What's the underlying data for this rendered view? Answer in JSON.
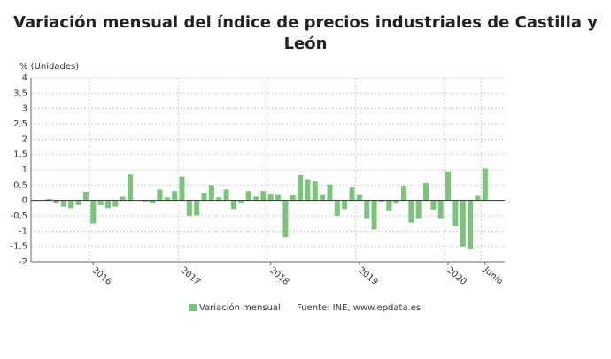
{
  "chart_data": {
    "type": "bar",
    "title_lines": [
      "Variación mensual del índice de precios industriales de Castilla y",
      "León"
    ],
    "y_axis_label": "% (Unidades)",
    "categories": [
      null,
      null,
      null,
      null,
      null,
      null,
      "2016",
      null,
      null,
      null,
      null,
      null,
      null,
      null,
      null,
      null,
      null,
      null,
      "2017",
      null,
      null,
      null,
      null,
      null,
      null,
      null,
      null,
      null,
      null,
      null,
      "2018",
      null,
      null,
      null,
      null,
      null,
      null,
      null,
      null,
      null,
      null,
      null,
      "2019",
      null,
      null,
      null,
      null,
      null,
      null,
      null,
      null,
      null,
      null,
      null,
      "2020",
      null,
      null,
      null,
      null,
      "Junio"
    ],
    "series": [
      {
        "name": "Variación mensual",
        "color": "#7cc47c",
        "values": [
          0.05,
          -0.1,
          -0.2,
          -0.25,
          -0.15,
          0.28,
          -0.75,
          -0.15,
          -0.25,
          -0.2,
          0.12,
          0.85,
          0,
          -0.05,
          -0.1,
          0.35,
          0.1,
          0.3,
          0.78,
          -0.5,
          -0.48,
          0.25,
          0.5,
          0.1,
          0.35,
          -0.28,
          -0.1,
          0.3,
          0.12,
          0.3,
          0.22,
          0.2,
          -1.2,
          0.18,
          0.83,
          0.67,
          0.62,
          0.2,
          0.52,
          -0.5,
          -0.28,
          0.42,
          0.2,
          -0.6,
          -0.95,
          -0.05,
          -0.35,
          -0.1,
          0.48,
          -0.72,
          -0.6,
          0.57,
          -0.3,
          -0.6,
          0.95,
          -0.85,
          -1.5,
          -1.6,
          0.15,
          1.05
        ]
      }
    ],
    "source": "Fuente: INE, www.epdata.es",
    "ylim": [
      -2,
      4
    ],
    "yticks": [
      -2,
      {
        "value": -1.5,
        "label": "-1,5"
      },
      -1,
      {
        "value": -0.5,
        "label": "-0,5"
      },
      0,
      {
        "value": 0.5,
        "label": "0,5"
      },
      1,
      {
        "value": 1.5,
        "label": "1,5"
      },
      2,
      {
        "value": 2.5,
        "label": "2,5"
      },
      3,
      {
        "value": 3.5,
        "label": "3,5"
      },
      4
    ],
    "grid": true
  }
}
